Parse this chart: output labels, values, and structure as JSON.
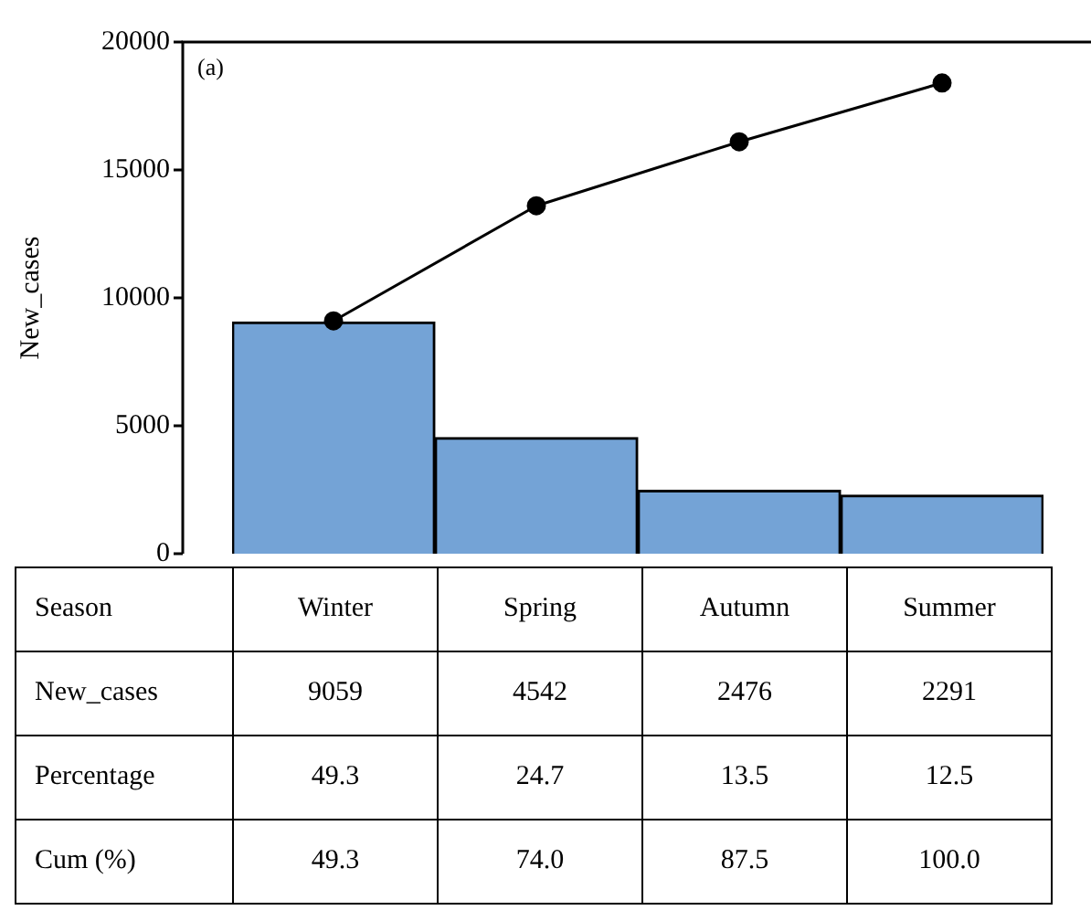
{
  "chart_data": {
    "type": "bar",
    "xlabel": "Season",
    "ylabel": "New_cases",
    "categories": [
      "Winter",
      "Spring",
      "Autumn",
      "Summer"
    ],
    "series": [
      {
        "color": "#74a3d6",
        "values": [
          9059,
          4542,
          2476,
          2291
        ],
        "value_labels": [
          "9059",
          "4542",
          "2476",
          "2291"
        ]
      },
      {
        "type": "line",
        "color": "#000000",
        "values": [
          9100,
          13600,
          16100,
          18400
        ],
        "marker": "circle",
        "line_style": "solid"
      }
    ],
    "ylim": [
      0,
      20000
    ],
    "yticks": [
      0,
      5000,
      10000,
      15000,
      20000
    ],
    "grid": false,
    "legend": false,
    "annotations": [
      "(a)",
      "New_cases",
      "Percentage",
      "49.3",
      "24.7",
      "13.5",
      "12.5",
      "Cum (%)",
      "49.3",
      "74.0",
      "87.5",
      "100.0"
    ]
  }
}
